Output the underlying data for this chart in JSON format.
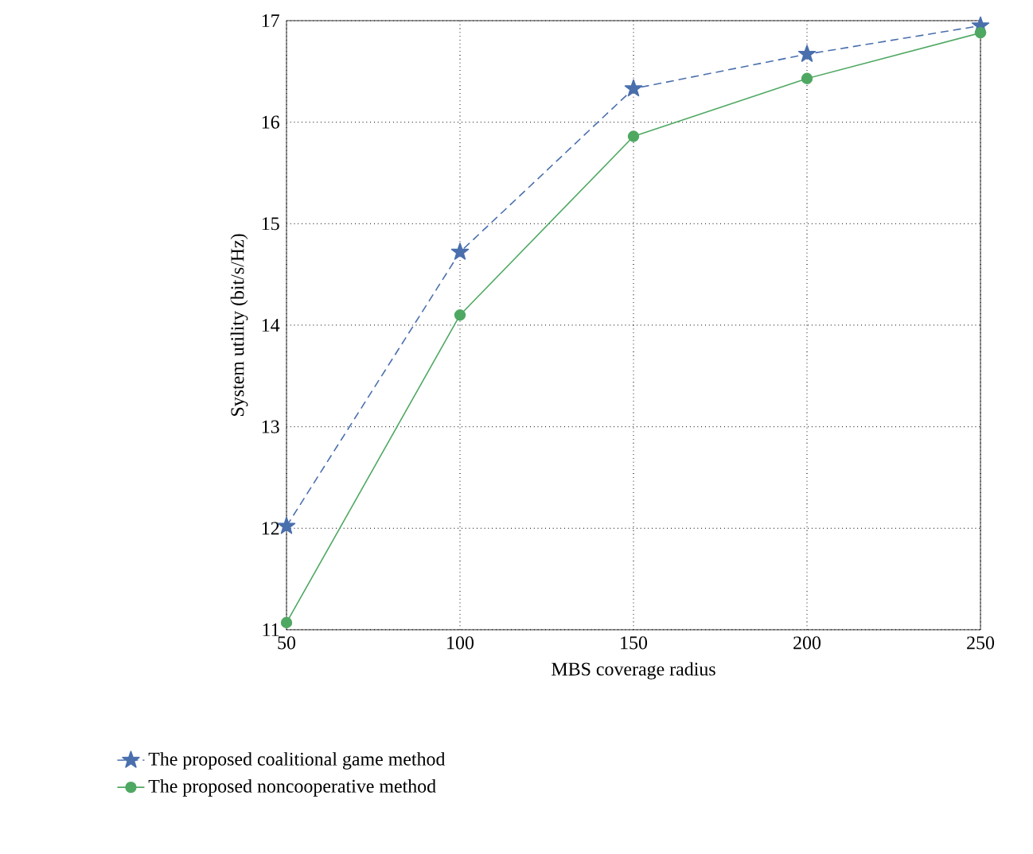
{
  "chart_data": {
    "type": "line",
    "xlabel": "MBS coverage radius",
    "ylabel": "System utility (bit/s/Hz)",
    "x": [
      50,
      100,
      150,
      200,
      250
    ],
    "series": [
      {
        "name": "The proposed coalitional game method",
        "color": "#4a6fad",
        "marker": "star",
        "line_style": "dashed",
        "values": [
          12.02,
          14.72,
          16.33,
          16.67,
          16.95
        ]
      },
      {
        "name": "The proposed noncooperative method",
        "color": "#4fa862",
        "marker": "circle",
        "line_style": "solid",
        "values": [
          11.07,
          14.1,
          15.86,
          16.43,
          16.88
        ]
      }
    ],
    "xlim": [
      50,
      250
    ],
    "xticks": [
      50,
      100,
      150,
      200,
      250
    ],
    "ylim": [
      11,
      17
    ],
    "yticks": [
      11,
      12,
      13,
      14,
      15,
      16,
      17
    ],
    "grid": true,
    "legend": "bottom"
  }
}
